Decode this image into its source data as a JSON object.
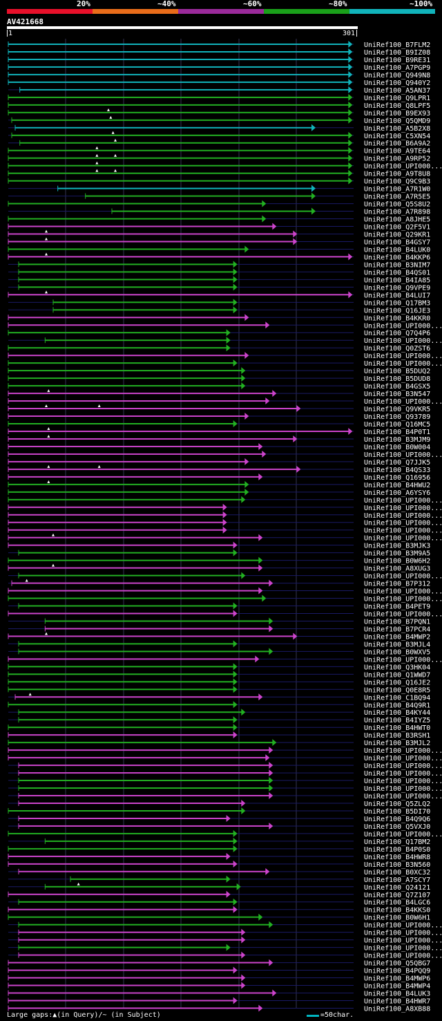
{
  "legend": [
    {
      "label": "20%",
      "color": "#e8102a"
    },
    {
      "label": "~40%",
      "color": "#e86c1a"
    },
    {
      "label": "~60%",
      "color": "#9a2a9a"
    },
    {
      "label": "~80%",
      "color": "#1aa01a"
    },
    {
      "label": "~100%",
      "color": "#11b3bb"
    }
  ],
  "query": {
    "id": "AV421668",
    "start": "1",
    "end": "301"
  },
  "colors": {
    "cyan": "#11b3bb",
    "green": "#22b022",
    "magenta": "#cc44cc",
    "line": "#1a1a66",
    "bg": "#000000"
  },
  "hits": [
    {
      "name": "UniRef100_B7FLM2",
      "s": 1,
      "e": 300,
      "c": "cyan",
      "tri": []
    },
    {
      "name": "UniRef100_B9IZ08",
      "s": 1,
      "e": 300,
      "c": "cyan",
      "tri": []
    },
    {
      "name": "UniRef100_B9RE31",
      "s": 1,
      "e": 300,
      "c": "cyan",
      "tri": []
    },
    {
      "name": "UniRef100_A7PGP9",
      "s": 1,
      "e": 300,
      "c": "cyan",
      "tri": []
    },
    {
      "name": "UniRef100_Q949N8",
      "s": 1,
      "e": 300,
      "c": "cyan",
      "tri": []
    },
    {
      "name": "UniRef100_Q940Y2",
      "s": 1,
      "e": 300,
      "c": "cyan",
      "tri": []
    },
    {
      "name": "UniRef100_A5AN37",
      "s": 11,
      "e": 300,
      "c": "cyan",
      "tri": []
    },
    {
      "name": "UniRef100_Q9LPR1",
      "s": 1,
      "e": 300,
      "c": "green",
      "tri": []
    },
    {
      "name": "UniRef100_Q8LPF5",
      "s": 1,
      "e": 300,
      "c": "green",
      "tri": []
    },
    {
      "name": "UniRef100_B9EX93",
      "s": 1,
      "e": 300,
      "c": "green",
      "tri": [
        88
      ]
    },
    {
      "name": "UniRef100_Q5QMD9",
      "s": 4,
      "e": 300,
      "c": "green",
      "tri": [
        90
      ]
    },
    {
      "name": "UniRef100_A5B2X8",
      "s": 7,
      "e": 268,
      "c": "cyan",
      "tri": []
    },
    {
      "name": "UniRef100_C5XN54",
      "s": 4,
      "e": 300,
      "c": "green",
      "tri": [
        92
      ]
    },
    {
      "name": "UniRef100_B6A9A2",
      "s": 11,
      "e": 300,
      "c": "green",
      "tri": [
        94
      ]
    },
    {
      "name": "UniRef100_A9TE64",
      "s": 1,
      "e": 300,
      "c": "green",
      "tri": [
        78
      ]
    },
    {
      "name": "UniRef100_A9RP52",
      "s": 1,
      "e": 300,
      "c": "green",
      "tri": [
        78,
        94
      ]
    },
    {
      "name": "UniRef100_UPI000...",
      "s": 1,
      "e": 300,
      "c": "green",
      "tri": [
        78
      ]
    },
    {
      "name": "UniRef100_A9T8U8",
      "s": 1,
      "e": 300,
      "c": "green",
      "tri": [
        78,
        94
      ]
    },
    {
      "name": "UniRef100_Q9C9B3",
      "s": 1,
      "e": 300,
      "c": "green",
      "tri": []
    },
    {
      "name": "UniRef100_A7R1W0",
      "s": 44,
      "e": 268,
      "c": "cyan",
      "tri": []
    },
    {
      "name": "UniRef100_A7R5E5",
      "s": 68,
      "e": 268,
      "c": "green",
      "tri": []
    },
    {
      "name": "UniRef100_Q5S8U2",
      "s": 1,
      "e": 225,
      "c": "green",
      "tri": []
    },
    {
      "name": "UniRef100_A7R898",
      "s": 91,
      "e": 268,
      "c": "green",
      "tri": []
    },
    {
      "name": "UniRef100_A8JHE5",
      "s": 1,
      "e": 225,
      "c": "green",
      "tri": []
    },
    {
      "name": "UniRef100_Q2F5V1",
      "s": 1,
      "e": 234,
      "c": "magenta",
      "tri": []
    },
    {
      "name": "UniRef100_Q29KR1",
      "s": 1,
      "e": 252,
      "c": "magenta",
      "tri": [
        34
      ]
    },
    {
      "name": "UniRef100_B4GSY7",
      "s": 1,
      "e": 252,
      "c": "magenta",
      "tri": [
        34
      ]
    },
    {
      "name": "UniRef100_B4LUK0",
      "s": 1,
      "e": 210,
      "c": "green",
      "tri": []
    },
    {
      "name": "UniRef100_B4KKP6",
      "s": 1,
      "e": 300,
      "c": "magenta",
      "tri": [
        34
      ]
    },
    {
      "name": "UniRef100_B3NIM7",
      "s": 10,
      "e": 200,
      "c": "green",
      "tri": []
    },
    {
      "name": "UniRef100_B4QS01",
      "s": 10,
      "e": 200,
      "c": "green",
      "tri": []
    },
    {
      "name": "UniRef100_B4IA85",
      "s": 10,
      "e": 200,
      "c": "green",
      "tri": []
    },
    {
      "name": "UniRef100_Q9VPE9",
      "s": 10,
      "e": 200,
      "c": "green",
      "tri": []
    },
    {
      "name": "UniRef100_B4LUI7",
      "s": 1,
      "e": 300,
      "c": "magenta",
      "tri": [
        34
      ]
    },
    {
      "name": "UniRef100_Q17BM3",
      "s": 40,
      "e": 200,
      "c": "green",
      "tri": []
    },
    {
      "name": "UniRef100_Q16JE3",
      "s": 40,
      "e": 200,
      "c": "green",
      "tri": []
    },
    {
      "name": "UniRef100_B4KKR0",
      "s": 1,
      "e": 210,
      "c": "magenta",
      "tri": []
    },
    {
      "name": "UniRef100_UPI000...",
      "s": 1,
      "e": 228,
      "c": "magenta",
      "tri": []
    },
    {
      "name": "UniRef100_Q7Q4P6",
      "s": 1,
      "e": 194,
      "c": "green",
      "tri": []
    },
    {
      "name": "UniRef100_UPI000...",
      "s": 33,
      "e": 194,
      "c": "green",
      "tri": []
    },
    {
      "name": "UniRef100_Q0ZST6",
      "s": 1,
      "e": 194,
      "c": "green",
      "tri": []
    },
    {
      "name": "UniRef100_UPI000...",
      "s": 1,
      "e": 210,
      "c": "magenta",
      "tri": []
    },
    {
      "name": "UniRef100_UPI000...",
      "s": 1,
      "e": 200,
      "c": "green",
      "tri": []
    },
    {
      "name": "UniRef100_B5DUQ2",
      "s": 1,
      "e": 207,
      "c": "green",
      "tri": []
    },
    {
      "name": "UniRef100_B5DUD8",
      "s": 1,
      "e": 207,
      "c": "green",
      "tri": []
    },
    {
      "name": "UniRef100_B4GSX5",
      "s": 1,
      "e": 207,
      "c": "green",
      "tri": []
    },
    {
      "name": "UniRef100_B3N547",
      "s": 1,
      "e": 234,
      "c": "magenta",
      "tri": [
        36
      ]
    },
    {
      "name": "UniRef100_UPI000...",
      "s": 1,
      "e": 228,
      "c": "magenta",
      "tri": []
    },
    {
      "name": "UniRef100_Q9VKR5",
      "s": 1,
      "e": 255,
      "c": "magenta",
      "tri": [
        34,
        80
      ]
    },
    {
      "name": "UniRef100_Q93789",
      "s": 1,
      "e": 210,
      "c": "magenta",
      "tri": []
    },
    {
      "name": "UniRef100_Q16MC5",
      "s": 1,
      "e": 200,
      "c": "green",
      "tri": []
    },
    {
      "name": "UniRef100_B4P0T1",
      "s": 1,
      "e": 300,
      "c": "magenta",
      "tri": [
        36
      ]
    },
    {
      "name": "UniRef100_B3MJM9",
      "s": 1,
      "e": 252,
      "c": "magenta",
      "tri": [
        36
      ]
    },
    {
      "name": "UniRef100_B0W004",
      "s": 1,
      "e": 222,
      "c": "magenta",
      "tri": []
    },
    {
      "name": "UniRef100_UPI000...",
      "s": 1,
      "e": 225,
      "c": "magenta",
      "tri": []
    },
    {
      "name": "UniRef100_Q7JJK5",
      "s": 1,
      "e": 210,
      "c": "magenta",
      "tri": []
    },
    {
      "name": "UniRef100_B4QS33",
      "s": 1,
      "e": 255,
      "c": "magenta",
      "tri": [
        36,
        80
      ]
    },
    {
      "name": "UniRef100_Q16956",
      "s": 1,
      "e": 222,
      "c": "magenta",
      "tri": []
    },
    {
      "name": "UniRef100_B4HWU2",
      "s": 1,
      "e": 210,
      "c": "green",
      "tri": [
        36
      ]
    },
    {
      "name": "UniRef100_A6YSY6",
      "s": 1,
      "e": 210,
      "c": "green",
      "tri": []
    },
    {
      "name": "UniRef100_UPI000...",
      "s": 1,
      "e": 207,
      "c": "green",
      "tri": []
    },
    {
      "name": "UniRef100_UPI000...",
      "s": 1,
      "e": 191,
      "c": "magenta",
      "tri": []
    },
    {
      "name": "UniRef100_UPI000...",
      "s": 1,
      "e": 191,
      "c": "magenta",
      "tri": []
    },
    {
      "name": "UniRef100_UPI000...",
      "s": 1,
      "e": 191,
      "c": "magenta",
      "tri": []
    },
    {
      "name": "UniRef100_UPI000...",
      "s": 1,
      "e": 191,
      "c": "magenta",
      "tri": []
    },
    {
      "name": "UniRef100_UPI000...",
      "s": 1,
      "e": 222,
      "c": "magenta",
      "tri": [
        40
      ]
    },
    {
      "name": "UniRef100_B3MJK3",
      "s": 1,
      "e": 200,
      "c": "magenta",
      "tri": []
    },
    {
      "name": "UniRef100_B3M9A5",
      "s": 10,
      "e": 200,
      "c": "green",
      "tri": []
    },
    {
      "name": "UniRef100_B0W6H2",
      "s": 1,
      "e": 222,
      "c": "green",
      "tri": []
    },
    {
      "name": "UniRef100_A8XUG3",
      "s": 1,
      "e": 222,
      "c": "magenta",
      "tri": [
        40
      ]
    },
    {
      "name": "UniRef100_UPI000...",
      "s": 10,
      "e": 207,
      "c": "green",
      "tri": []
    },
    {
      "name": "UniRef100_B7P312",
      "s": 4,
      "e": 231,
      "c": "magenta",
      "tri": [
        17
      ]
    },
    {
      "name": "UniRef100_UPI000...",
      "s": 1,
      "e": 222,
      "c": "magenta",
      "tri": []
    },
    {
      "name": "UniRef100_UPI000...",
      "s": 1,
      "e": 225,
      "c": "green",
      "tri": []
    },
    {
      "name": "UniRef100_B4PET9",
      "s": 10,
      "e": 200,
      "c": "green",
      "tri": []
    },
    {
      "name": "UniRef100_UPI000...",
      "s": 1,
      "e": 200,
      "c": "magenta",
      "tri": []
    },
    {
      "name": "UniRef100_B7PQN1",
      "s": 33,
      "e": 231,
      "c": "green",
      "tri": []
    },
    {
      "name": "UniRef100_B7PCR4",
      "s": 33,
      "e": 231,
      "c": "magenta",
      "tri": []
    },
    {
      "name": "UniRef100_B4MWP2",
      "s": 1,
      "e": 252,
      "c": "magenta",
      "tri": [
        34
      ]
    },
    {
      "name": "UniRef100_B3MJL4",
      "s": 10,
      "e": 200,
      "c": "green",
      "tri": []
    },
    {
      "name": "UniRef100_B0WXV5",
      "s": 10,
      "e": 231,
      "c": "green",
      "tri": []
    },
    {
      "name": "UniRef100_UPI000...",
      "s": 1,
      "e": 219,
      "c": "magenta",
      "tri": []
    },
    {
      "name": "UniRef100_Q3HK04",
      "s": 1,
      "e": 200,
      "c": "green",
      "tri": []
    },
    {
      "name": "UniRef100_Q1WWD7",
      "s": 1,
      "e": 200,
      "c": "green",
      "tri": []
    },
    {
      "name": "UniRef100_Q16JE2",
      "s": 1,
      "e": 200,
      "c": "green",
      "tri": []
    },
    {
      "name": "UniRef100_Q0E8R5",
      "s": 1,
      "e": 200,
      "c": "green",
      "tri": []
    },
    {
      "name": "UniRef100_C1BQ94",
      "s": 7,
      "e": 222,
      "c": "magenta",
      "tri": [
        20
      ]
    },
    {
      "name": "UniRef100_B4Q9R1",
      "s": 1,
      "e": 200,
      "c": "green",
      "tri": []
    },
    {
      "name": "UniRef100_B4KY44",
      "s": 10,
      "e": 207,
      "c": "green",
      "tri": []
    },
    {
      "name": "UniRef100_B4IYZ5",
      "s": 10,
      "e": 200,
      "c": "green",
      "tri": []
    },
    {
      "name": "UniRef100_B4HWT0",
      "s": 1,
      "e": 200,
      "c": "green",
      "tri": []
    },
    {
      "name": "UniRef100_B3RSH1",
      "s": 1,
      "e": 200,
      "c": "magenta",
      "tri": []
    },
    {
      "name": "UniRef100_B3MJL2",
      "s": 1,
      "e": 234,
      "c": "green",
      "tri": []
    },
    {
      "name": "UniRef100_UPI000...",
      "s": 1,
      "e": 231,
      "c": "magenta",
      "tri": []
    },
    {
      "name": "UniRef100_UPI000...",
      "s": 1,
      "e": 228,
      "c": "magenta",
      "tri": []
    },
    {
      "name": "UniRef100_UPI000...",
      "s": 10,
      "e": 231,
      "c": "magenta",
      "tri": []
    },
    {
      "name": "UniRef100_UPI000...",
      "s": 10,
      "e": 231,
      "c": "magenta",
      "tri": []
    },
    {
      "name": "UniRef100_UPI000...",
      "s": 10,
      "e": 231,
      "c": "green",
      "tri": []
    },
    {
      "name": "UniRef100_UPI000...",
      "s": 10,
      "e": 231,
      "c": "green",
      "tri": []
    },
    {
      "name": "UniRef100_UPI000...",
      "s": 10,
      "e": 231,
      "c": "magenta",
      "tri": []
    },
    {
      "name": "UniRef100_Q5ZLQ2",
      "s": 10,
      "e": 207,
      "c": "magenta",
      "tri": []
    },
    {
      "name": "UniRef100_B5DI70",
      "s": 1,
      "e": 207,
      "c": "green",
      "tri": []
    },
    {
      "name": "UniRef100_B4Q9Q6",
      "s": 10,
      "e": 194,
      "c": "magenta",
      "tri": []
    },
    {
      "name": "UniRef100_Q5VXJ0",
      "s": 10,
      "e": 231,
      "c": "magenta",
      "tri": []
    },
    {
      "name": "UniRef100_UPI000...",
      "s": 1,
      "e": 200,
      "c": "green",
      "tri": []
    },
    {
      "name": "UniRef100_Q17BM2",
      "s": 33,
      "e": 200,
      "c": "green",
      "tri": []
    },
    {
      "name": "UniRef100_B4P0S0",
      "s": 1,
      "e": 200,
      "c": "green",
      "tri": []
    },
    {
      "name": "UniRef100_B4HWR8",
      "s": 1,
      "e": 194,
      "c": "magenta",
      "tri": []
    },
    {
      "name": "UniRef100_B3N560",
      "s": 1,
      "e": 200,
      "c": "magenta",
      "tri": []
    },
    {
      "name": "UniRef100_B0XC32",
      "s": 10,
      "e": 228,
      "c": "magenta",
      "tri": []
    },
    {
      "name": "UniRef100_A7SCY7",
      "s": 55,
      "e": 194,
      "c": "green",
      "tri": []
    },
    {
      "name": "UniRef100_Q24121",
      "s": 33,
      "e": 203,
      "c": "green",
      "tri": [
        62
      ]
    },
    {
      "name": "UniRef100_Q7Z107",
      "s": 1,
      "e": 194,
      "c": "magenta",
      "tri": []
    },
    {
      "name": "UniRef100_B4LGC6",
      "s": 10,
      "e": 200,
      "c": "green",
      "tri": []
    },
    {
      "name": "UniRef100_B4KKS0",
      "s": 1,
      "e": 200,
      "c": "magenta",
      "tri": []
    },
    {
      "name": "UniRef100_B0W6H1",
      "s": 1,
      "e": 222,
      "c": "green",
      "tri": []
    },
    {
      "name": "UniRef100_UPI000...",
      "s": 10,
      "e": 231,
      "c": "green",
      "tri": []
    },
    {
      "name": "UniRef100_UPI000...",
      "s": 10,
      "e": 207,
      "c": "magenta",
      "tri": []
    },
    {
      "name": "UniRef100_UPI000...",
      "s": 10,
      "e": 207,
      "c": "magenta",
      "tri": []
    },
    {
      "name": "UniRef100_UPI000...",
      "s": 10,
      "e": 194,
      "c": "green",
      "tri": []
    },
    {
      "name": "UniRef100_UPI000...",
      "s": 10,
      "e": 207,
      "c": "magenta",
      "tri": []
    },
    {
      "name": "UniRef100_Q5QBG7",
      "s": 1,
      "e": 231,
      "c": "magenta",
      "tri": []
    },
    {
      "name": "UniRef100_B4PQQ9",
      "s": 1,
      "e": 200,
      "c": "magenta",
      "tri": []
    },
    {
      "name": "UniRef100_B4MWP6",
      "s": 1,
      "e": 207,
      "c": "magenta",
      "tri": []
    },
    {
      "name": "UniRef100_B4MWP4",
      "s": 1,
      "e": 207,
      "c": "magenta",
      "tri": []
    },
    {
      "name": "UniRef100_B4LUK3",
      "s": 1,
      "e": 234,
      "c": "magenta",
      "tri": []
    },
    {
      "name": "UniRef100_B4HWR7",
      "s": 1,
      "e": 200,
      "c": "magenta",
      "tri": []
    },
    {
      "name": "UniRef100_A8XB88",
      "s": 1,
      "e": 222,
      "c": "magenta",
      "tri": []
    }
  ],
  "footer": {
    "text": "Large gaps:▲(in Query)/~ (in Subject)",
    "scale": "=50char."
  }
}
